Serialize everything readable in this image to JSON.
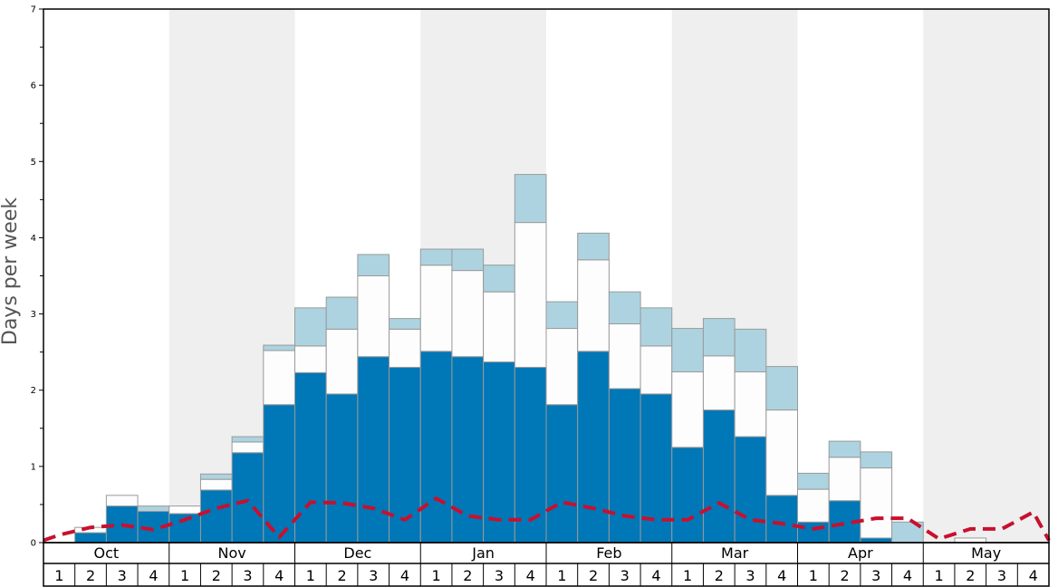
{
  "chart_data": {
    "type": "bar",
    "stacked": true,
    "ylabel": "Days per week",
    "ylim": [
      0,
      7
    ],
    "yticks": [
      "0",
      "1",
      "2",
      "3",
      "4",
      "5",
      "6",
      "7"
    ],
    "months": [
      "Oct",
      "Nov",
      "Dec",
      "Jan",
      "Feb",
      "Mar",
      "Apr",
      "May"
    ],
    "weeks": [
      "1",
      "2",
      "3",
      "4"
    ],
    "shaded_months": [
      "Nov",
      "Jan",
      "Mar",
      "May"
    ],
    "categories": [
      "Oct 1",
      "Oct 2",
      "Oct 3",
      "Oct 4",
      "Nov 1",
      "Nov 2",
      "Nov 3",
      "Nov 4",
      "Dec 1",
      "Dec 2",
      "Dec 3",
      "Dec 4",
      "Jan 1",
      "Jan 2",
      "Jan 3",
      "Jan 4",
      "Feb 1",
      "Feb 2",
      "Feb 3",
      "Feb 4",
      "Mar 1",
      "Mar 2",
      "Mar 3",
      "Mar 4",
      "Apr 1",
      "Apr 2",
      "Apr 3",
      "Apr 4",
      "May 1",
      "May 2",
      "May 3",
      "May 4"
    ],
    "colors": {
      "dark": "#0077b6",
      "white": "#fdfdfd",
      "light": "#add3e0",
      "dashed": "#c8102e",
      "band": "#efefef",
      "bar_stroke": "#9a9a9a"
    },
    "series": [
      {
        "values": [
          0,
          0.13,
          0.48,
          0.41,
          0.38,
          0.69,
          1.18,
          1.81,
          2.23,
          1.95,
          2.44,
          2.3,
          2.51,
          2.44,
          2.37,
          2.3,
          1.81,
          2.51,
          2.02,
          1.95,
          1.25,
          1.74,
          1.39,
          0.62,
          0.27,
          0.55,
          0.06,
          0,
          0,
          0,
          0,
          0
        ]
      },
      {
        "values": [
          0,
          0.07,
          0.14,
          0,
          0.1,
          0.14,
          0.14,
          0.71,
          0.35,
          0.85,
          1.06,
          0.5,
          1.13,
          1.13,
          0.92,
          1.9,
          1.0,
          1.2,
          0.85,
          0.63,
          0.99,
          0.71,
          0.85,
          1.12,
          0.43,
          0.57,
          0.92,
          0,
          0,
          0.06,
          0,
          0
        ]
      },
      {
        "values": [
          0,
          0,
          0,
          0.07,
          0,
          0.07,
          0.07,
          0.07,
          0.5,
          0.42,
          0.28,
          0.14,
          0.21,
          0.28,
          0.35,
          0.63,
          0.35,
          0.35,
          0.42,
          0.5,
          0.57,
          0.49,
          0.56,
          0.57,
          0.21,
          0.21,
          0.21,
          0.27,
          0,
          0,
          0,
          0
        ]
      }
    ],
    "dashed_line": {
      "x": [
        0,
        0.5,
        1.5,
        2.5,
        3.5,
        4.5,
        5.5,
        6.5,
        7.5,
        8.5,
        9.5,
        10.5,
        11.5,
        12.5,
        13.5,
        14.5,
        15.5,
        16.5,
        17.5,
        18.5,
        19.5,
        20.5,
        21.5,
        22.5,
        23.5,
        24.5,
        25.5,
        26.5,
        27.5,
        28.5,
        29.5,
        30.5,
        31.5,
        32
      ],
      "values": [
        0.03,
        0.1,
        0.2,
        0.23,
        0.17,
        0.3,
        0.45,
        0.55,
        0.07,
        0.53,
        0.52,
        0.45,
        0.3,
        0.58,
        0.35,
        0.3,
        0.3,
        0.53,
        0.45,
        0.35,
        0.3,
        0.3,
        0.52,
        0.3,
        0.25,
        0.18,
        0.25,
        0.32,
        0.32,
        0.05,
        0.18,
        0.18,
        0.4,
        0.03
      ]
    }
  }
}
